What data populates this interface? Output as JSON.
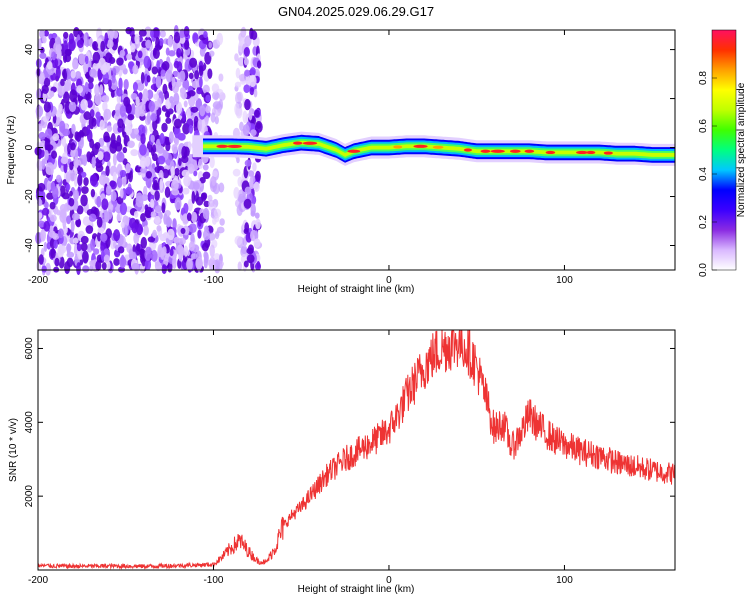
{
  "title": "GN04.2025.029.06.29.G17",
  "chart_data": [
    {
      "type": "heatmap",
      "xlabel": "Height of straight line (km)",
      "ylabel": "Frequency (Hz)",
      "xlim": [
        -200,
        163
      ],
      "ylim": [
        -50,
        48
      ],
      "xticks": [
        -200,
        -100,
        0,
        100
      ],
      "yticks": [
        -40,
        -20,
        0,
        20,
        40
      ],
      "colorbar": {
        "label": "Normalized spectral amplitude",
        "range": [
          0,
          1
        ],
        "ticks": [
          "0.0",
          "0.2",
          "0.4",
          "0.6",
          "0.8"
        ],
        "colors": [
          "#ffffff",
          "#d9b8ff",
          "#8a2be2",
          "#3b00ff",
          "#0000ff",
          "#00c8ff",
          "#00ff80",
          "#40ff00",
          "#c0ff00",
          "#ffff00",
          "#ffa000",
          "#ff3000",
          "#ff1060"
        ]
      },
      "ridge": {
        "x": [
          -112,
          -100,
          -90,
          -80,
          -70,
          -60,
          -50,
          -40,
          -30,
          -25,
          -20,
          -10,
          0,
          10,
          20,
          30,
          40,
          50,
          60,
          70,
          80,
          90,
          100,
          110,
          120,
          130,
          140,
          150,
          163
        ],
        "freq": [
          0.5,
          0.5,
          0.5,
          0.3,
          -0.5,
          1.0,
          2.0,
          1.5,
          -1.0,
          -3.0,
          -1.5,
          0,
          0,
          0.5,
          0.5,
          0,
          -0.5,
          -1.5,
          -1.5,
          -1.5,
          -1.5,
          -2.0,
          -2.0,
          -2.0,
          -2.0,
          -2.5,
          -2.5,
          -3.0,
          -3.0
        ]
      }
    },
    {
      "type": "line",
      "xlabel": "Height of straight line (km)",
      "ylabel": "SNR (10 * v/v)",
      "xlim": [
        -200,
        163
      ],
      "ylim": [
        0,
        6500
      ],
      "xticks": [
        -200,
        -100,
        0,
        100
      ],
      "yticks": [
        2000,
        4000,
        6000
      ],
      "line_color": "#ee3333",
      "series": [
        {
          "x": [
            -200,
            -180,
            -160,
            -140,
            -120,
            -100,
            -95,
            -90,
            -85,
            -80,
            -75,
            -70,
            -65,
            -60,
            -55,
            -50,
            -45,
            -40,
            -35,
            -30,
            -25,
            -20,
            -15,
            -10,
            -5,
            0,
            5,
            10,
            15,
            20,
            25,
            30,
            35,
            40,
            45,
            50,
            55,
            60,
            65,
            70,
            75,
            80,
            85,
            90,
            95,
            100,
            110,
            120,
            130,
            140,
            150,
            163
          ],
          "y": [
            120,
            100,
            110,
            100,
            120,
            150,
            350,
            600,
            800,
            500,
            250,
            200,
            600,
            1200,
            1500,
            1700,
            2000,
            2300,
            2600,
            2800,
            3000,
            3150,
            3300,
            3450,
            3600,
            3800,
            4200,
            4700,
            5100,
            5500,
            5800,
            6000,
            6100,
            6200,
            6000,
            5500,
            4700,
            3800,
            4000,
            3300,
            3700,
            4200,
            3900,
            3700,
            3500,
            3400,
            3200,
            3100,
            2900,
            2800,
            2700,
            2600
          ]
        }
      ]
    }
  ]
}
